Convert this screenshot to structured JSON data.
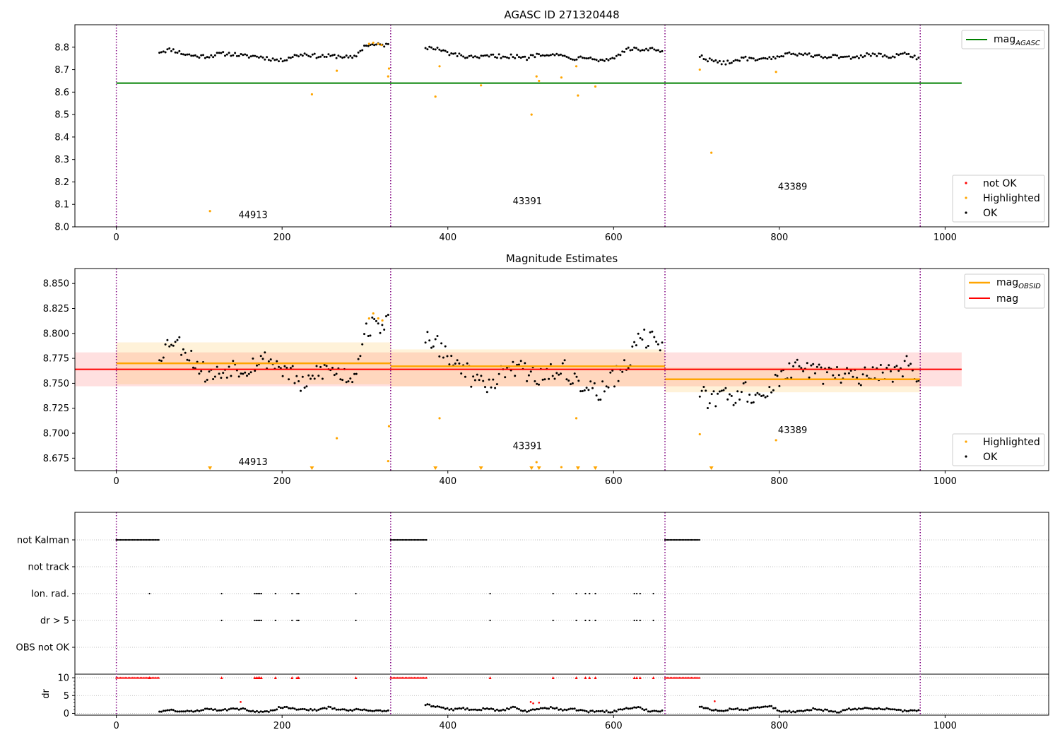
{
  "chart_data": [
    {
      "type": "scatter",
      "title": "AGASC ID 271320448",
      "xlim": [
        -50,
        1125
      ],
      "ylim": [
        8.0,
        8.9
      ],
      "x_ticks": [
        "0",
        "200",
        "400",
        "600",
        "800",
        "1000"
      ],
      "x_tick_values": [
        0,
        200,
        400,
        600,
        800,
        1000
      ],
      "y_ticks": [
        "8.0",
        "8.1",
        "8.2",
        "8.3",
        "8.4",
        "8.5",
        "8.6",
        "8.7",
        "8.8"
      ],
      "y_tick_values": [
        8.0,
        8.1,
        8.2,
        8.3,
        8.4,
        8.5,
        8.6,
        8.7,
        8.8
      ],
      "obs_boundaries": [
        0,
        331,
        662,
        970
      ],
      "obs_labels": [
        {
          "text": "44913",
          "x": 165,
          "y": 8.04
        },
        {
          "text": "43391",
          "x": 496,
          "y": 8.1
        },
        {
          "text": "43389",
          "x": 816,
          "y": 8.165
        }
      ],
      "hlines": [
        {
          "label": "mag_AGASC",
          "y": 8.64,
          "x": [
            0,
            1020
          ],
          "color": "#008000"
        }
      ],
      "legend_line": {
        "label": "mag",
        "sub": "AGASC",
        "placement": "upper-right",
        "color": "#008000"
      },
      "legend_points": {
        "placement": "lower-right",
        "entries": [
          {
            "label": "not OK",
            "color": "#ff0000"
          },
          {
            "label": "Highlighted",
            "color": "#ffa500"
          },
          {
            "label": "OK",
            "color": "#000000"
          }
        ]
      },
      "ok_points": {
        "color": "#000000",
        "segments": [
          {
            "x0": 52,
            "x1": 330,
            "y": [
              8.78,
              8.79,
              8.77,
              8.76,
              8.76,
              8.77,
              8.77,
              8.76,
              8.76,
              8.75,
              8.74,
              8.76,
              8.77,
              8.76,
              8.76,
              8.76,
              8.75,
              8.81,
              8.81,
              8.81
            ]
          },
          {
            "x0": 373,
            "x1": 660,
            "y": [
              8.8,
              8.79,
              8.77,
              8.76,
              8.75,
              8.76,
              8.76,
              8.76,
              8.75,
              8.77,
              8.77,
              8.76,
              8.75,
              8.76,
              8.74,
              8.75,
              8.79,
              8.79,
              8.79,
              8.78
            ]
          },
          {
            "x0": 704,
            "x1": 968,
            "y": [
              8.76,
              8.74,
              8.73,
              8.74,
              8.75,
              8.74,
              8.75,
              8.76,
              8.77,
              8.77,
              8.76,
              8.76,
              8.76,
              8.75,
              8.76,
              8.77,
              8.76,
              8.76,
              8.77,
              8.75
            ]
          }
        ]
      },
      "highlighted_points": {
        "color": "#ffa500",
        "points": [
          [
            113,
            8.07
          ],
          [
            236,
            8.59
          ],
          [
            266,
            8.695
          ],
          [
            305,
            8.815
          ],
          [
            310,
            8.82
          ],
          [
            316,
            8.815
          ],
          [
            320,
            8.81
          ],
          [
            328,
            8.67
          ],
          [
            329,
            8.705
          ],
          [
            385,
            8.58
          ],
          [
            390,
            8.715
          ],
          [
            440,
            8.63
          ],
          [
            501,
            8.5
          ],
          [
            507,
            8.67
          ],
          [
            510,
            8.65
          ],
          [
            537,
            8.665
          ],
          [
            555,
            8.715
          ],
          [
            557,
            8.585
          ],
          [
            578,
            8.625
          ],
          [
            704,
            8.7
          ],
          [
            718,
            8.33
          ],
          [
            796,
            8.69
          ]
        ]
      }
    },
    {
      "type": "scatter",
      "title": "Magnitude Estimates",
      "xlim": [
        -50,
        1125
      ],
      "ylim": [
        8.6625,
        8.865
      ],
      "x_ticks": [
        "0",
        "200",
        "400",
        "600",
        "800",
        "1000"
      ],
      "x_tick_values": [
        0,
        200,
        400,
        600,
        800,
        1000
      ],
      "y_ticks": [
        "8.675",
        "8.700",
        "8.725",
        "8.750",
        "8.775",
        "8.800",
        "8.825",
        "8.850"
      ],
      "y_tick_values": [
        8.675,
        8.7,
        8.725,
        8.75,
        8.775,
        8.8,
        8.825,
        8.85
      ],
      "obs_boundaries": [
        0,
        331,
        662,
        970
      ],
      "obs_labels": [
        {
          "text": "44913",
          "x": 165,
          "y": 8.668
        },
        {
          "text": "43391",
          "x": 496,
          "y": 8.684
        },
        {
          "text": "43389",
          "x": 816,
          "y": 8.7
        },
        {
          "text": "",
          "x": 0,
          "y": 0
        }
      ],
      "mag_band": {
        "label": "mag",
        "y": 8.764,
        "ylow": 8.747,
        "yhigh": 8.781,
        "x": [
          -50,
          1020
        ],
        "color": "#ff0000"
      },
      "obsid_mags": [
        {
          "x": [
            0,
            331
          ],
          "y": 8.77,
          "ylow": 8.749,
          "yhigh": 8.791
        },
        {
          "x": [
            331,
            662
          ],
          "y": 8.767,
          "ylow": 8.747,
          "yhigh": 8.784
        },
        {
          "x": [
            662,
            970
          ],
          "y": 8.754,
          "ylow": 8.741,
          "yhigh": 8.766
        }
      ],
      "legend_lines": {
        "placement": "upper-right",
        "entries": [
          {
            "label": "mag",
            "sub": "OBSID",
            "color": "#ffa500"
          },
          {
            "label": "mag",
            "sub": "",
            "color": "#ff0000"
          }
        ]
      },
      "legend_points": {
        "placement": "lower-right",
        "entries": [
          {
            "label": "Highlighted",
            "color": "#ffa500"
          },
          {
            "label": "OK",
            "color": "#000000"
          }
        ]
      },
      "ok_points": {
        "color": "#000000",
        "segments": [
          {
            "x0": 52,
            "x1": 330,
            "y": [
              8.778,
              8.795,
              8.786,
              8.77,
              8.758,
              8.76,
              8.768,
              8.764,
              8.772,
              8.774,
              8.766,
              8.758,
              8.744,
              8.762,
              8.764,
              8.759,
              8.756,
              8.805,
              8.808,
              8.812
            ]
          },
          {
            "x0": 373,
            "x1": 660,
            "y": [
              8.795,
              8.787,
              8.775,
              8.765,
              8.752,
              8.745,
              8.762,
              8.768,
              8.76,
              8.755,
              8.764,
              8.765,
              8.752,
              8.748,
              8.74,
              8.755,
              8.765,
              8.795,
              8.793,
              8.784
            ]
          },
          {
            "x0": 704,
            "x1": 968,
            "y": [
              8.74,
              8.733,
              8.735,
              8.737,
              8.742,
              8.738,
              8.745,
              8.755,
              8.763,
              8.765,
              8.76,
              8.758,
              8.76,
              8.755,
              8.758,
              8.765,
              8.762,
              8.76,
              8.77,
              8.755
            ]
          }
        ]
      },
      "highlighted_points": {
        "color": "#ffa500",
        "points": [
          [
            266,
            8.695
          ],
          [
            305,
            8.815
          ],
          [
            310,
            8.82
          ],
          [
            316,
            8.815
          ],
          [
            321,
            8.813
          ],
          [
            328,
            8.672
          ],
          [
            329,
            8.707
          ],
          [
            390,
            8.715
          ],
          [
            507,
            8.671
          ],
          [
            537,
            8.666
          ],
          [
            555,
            8.715
          ],
          [
            704,
            8.699
          ],
          [
            796,
            8.693
          ]
        ]
      },
      "below_axis_markers": {
        "color": "#ffa500",
        "x": [
          113,
          236,
          385,
          440,
          501,
          510,
          557,
          578,
          718
        ]
      }
    },
    {
      "type": "scatter",
      "title": "",
      "xlim": [
        -50,
        1125
      ],
      "x_ticks": [
        "0",
        "200",
        "400",
        "600",
        "800",
        "1000"
      ],
      "x_tick_values": [
        0,
        200,
        400,
        600,
        800,
        1000
      ],
      "obs_boundaries": [
        0,
        331,
        662,
        970
      ],
      "flag_rows": [
        "not Kalman",
        "not track",
        "Ion. rad.",
        "dr > 5",
        "OBS not OK"
      ],
      "flags": {
        "not Kalman": [
          {
            "x0": 0,
            "x1": 52
          },
          {
            "x0": 331,
            "x1": 375
          },
          {
            "x0": 662,
            "x1": 704
          }
        ],
        "not track": [],
        "Ion. rad.": [
          40,
          127,
          167,
          169,
          171,
          173,
          175,
          192,
          212,
          218,
          220,
          289,
          451,
          527,
          555,
          566,
          571,
          578,
          625,
          628,
          632,
          648
        ],
        "dr > 5": [
          127,
          167,
          169,
          171,
          173,
          175,
          192,
          212,
          218,
          220,
          289,
          451,
          527,
          555,
          566,
          571,
          578,
          625,
          628,
          632,
          648
        ],
        "OBS not OK": []
      },
      "dr_axis": {
        "ylabel": "dr",
        "ylim": [
          -0.5,
          11
        ],
        "y_ticks": [
          "0",
          "5",
          "10"
        ],
        "y_tick_values": [
          0,
          5,
          10
        ],
        "cap": 10,
        "capped_red_points": [
          40,
          127,
          167,
          169,
          171,
          173,
          175,
          192,
          212,
          218,
          220,
          289,
          451,
          527,
          555,
          566,
          571,
          578,
          625,
          628,
          632,
          648
        ],
        "capped_ranges": [
          {
            "x0": 0,
            "x1": 52
          },
          {
            "x0": 331,
            "x1": 375
          },
          {
            "x0": 662,
            "x1": 704
          }
        ],
        "red_points": [
          [
            150,
            3.2
          ],
          [
            500,
            3.2
          ],
          [
            503,
            2.8
          ],
          [
            510,
            3.0
          ],
          [
            722,
            3.4
          ]
        ],
        "ok_segments": [
          {
            "x0": 52,
            "x1": 330,
            "y": [
              0.6,
              0.9,
              0.5,
              0.6,
              1.4,
              0.9,
              1.2,
              1.2,
              0.4,
              0.4,
              1.8,
              1.3,
              1.2,
              0.8,
              1.7,
              0.9,
              1.0,
              1.0,
              0.7,
              0.7
            ]
          },
          {
            "x0": 373,
            "x1": 660,
            "y": [
              2.4,
              1.9,
              1.0,
              1.4,
              0.8,
              1.5,
              0.6,
              1.7,
              0.5,
              1.3,
              1.6,
              1.0,
              1.1,
              0.5,
              0.6,
              0.5,
              1.4,
              1.6,
              0.6,
              0.8
            ]
          },
          {
            "x0": 704,
            "x1": 968,
            "y": [
              1.9,
              0.9,
              0.8,
              1.3,
              1.0,
              1.6,
              2.1,
              0.6,
              0.5,
              0.7,
              1.3,
              0.8,
              0.4,
              1.2,
              1.4,
              1.4,
              1.3,
              0.9,
              0.6,
              0.9
            ]
          }
        ]
      }
    }
  ]
}
